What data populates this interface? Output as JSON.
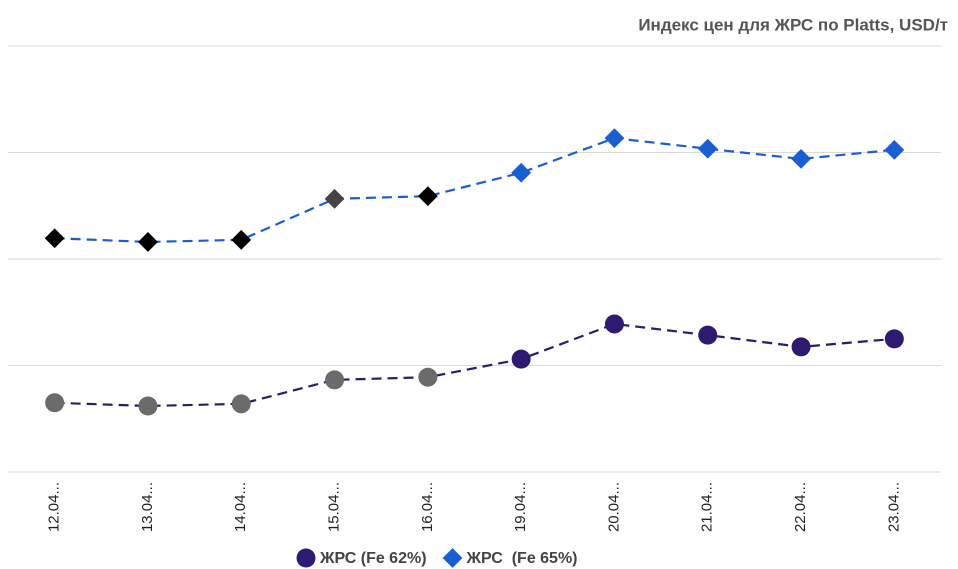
{
  "chart_data": {
    "type": "line",
    "title": "Индекс цен для ЖРС по Platts, USD/т",
    "categories": [
      "12.04...",
      "13.04...",
      "14.04...",
      "15.04...",
      "16.04...",
      "19.04...",
      "20.04...",
      "21.04...",
      "22.04...",
      "23.04..."
    ],
    "series": [
      {
        "name": "ЖРС (Fe 62%)",
        "color": "#2e1a6e",
        "marker": "circle",
        "values": [
          163.0,
          162.4,
          162.8,
          167.3,
          167.8,
          171.2,
          177.8,
          175.7,
          173.5,
          175.0
        ],
        "point_colors": [
          "#6b6b6b",
          "#6b6b6b",
          "#6b6b6b",
          "#6b6b6b",
          "#6b6b6b",
          "#2e1a6e",
          "#2e1a6e",
          "#2e1a6e",
          "#2e1a6e",
          "#2e1a6e"
        ]
      },
      {
        "name": "ЖРС  (Fe 65%)",
        "color": "#1a5fd1",
        "marker": "diamond",
        "values": [
          193.9,
          193.2,
          193.6,
          201.3,
          201.8,
          206.2,
          212.7,
          210.7,
          208.8,
          210.5
        ],
        "point_colors": [
          "#000000",
          "#000000",
          "#000000",
          "#444444",
          "#000000",
          "#1a5fd1",
          "#1a5fd1",
          "#1a5fd1",
          "#1a5fd1",
          "#1a5fd1"
        ]
      }
    ],
    "ylim": [
      150,
      230
    ],
    "yticks": [
      150,
      170,
      190,
      210,
      230
    ],
    "grid": true,
    "dashed": true,
    "legend": "bottom"
  }
}
